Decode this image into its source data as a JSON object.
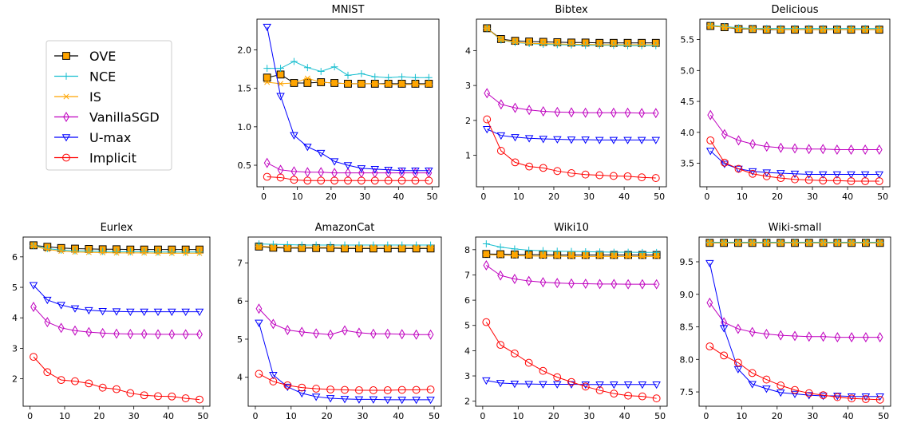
{
  "legend": {
    "location": "upper-left",
    "entries": [
      {
        "label": "OVE",
        "color": "#000000",
        "marker": "square"
      },
      {
        "label": "NCE",
        "color": "#17becf",
        "marker": "plus"
      },
      {
        "label": "IS",
        "color": "#ffa500",
        "marker": "asterisk"
      },
      {
        "label": "VanillaSGD",
        "color": "#bf00bf",
        "marker": "diamond"
      },
      {
        "label": "U-max",
        "color": "#0000ff",
        "marker": "triangle-down"
      },
      {
        "label": "Implicit",
        "color": "#ff0000",
        "marker": "circle"
      }
    ]
  },
  "chart_data": [
    {
      "type": "line",
      "title": "MNIST",
      "xlabel": "",
      "ylabel": "",
      "x": [
        1,
        5,
        9,
        13,
        17,
        21,
        25,
        29,
        33,
        37,
        41,
        45,
        49
      ],
      "xlim": [
        -2,
        52
      ],
      "ylim": [
        0.22,
        2.4
      ],
      "xticks": [
        0,
        10,
        20,
        30,
        40,
        50
      ],
      "yticks": [
        0.5,
        1.0,
        1.5,
        2.0
      ],
      "ytick_labels": [
        "0.5",
        "1.0",
        "1.5",
        "2.0"
      ],
      "series": [
        {
          "name": "OVE",
          "values": [
            1.64,
            1.68,
            1.57,
            1.57,
            1.58,
            1.57,
            1.56,
            1.56,
            1.56,
            1.56,
            1.56,
            1.56,
            1.56
          ]
        },
        {
          "name": "NCE",
          "values": [
            1.76,
            1.76,
            1.85,
            1.77,
            1.72,
            1.78,
            1.67,
            1.69,
            1.65,
            1.64,
            1.65,
            1.64,
            1.64
          ]
        },
        {
          "name": "IS",
          "values": [
            1.58,
            1.56,
            1.57,
            1.63,
            1.58,
            1.57,
            1.56,
            1.56,
            1.56,
            1.55,
            1.55,
            1.55,
            1.55
          ]
        },
        {
          "name": "VanillaSGD",
          "values": [
            0.53,
            0.44,
            0.42,
            0.41,
            0.41,
            0.4,
            0.4,
            0.4,
            0.4,
            0.4,
            0.4,
            0.4,
            0.4
          ]
        },
        {
          "name": "U-max",
          "values": [
            2.3,
            1.4,
            0.89,
            0.74,
            0.66,
            0.55,
            0.5,
            0.46,
            0.45,
            0.44,
            0.43,
            0.43,
            0.43
          ]
        },
        {
          "name": "Implicit",
          "values": [
            0.35,
            0.34,
            0.31,
            0.3,
            0.3,
            0.3,
            0.3,
            0.3,
            0.3,
            0.3,
            0.3,
            0.3,
            0.3
          ]
        }
      ]
    },
    {
      "type": "line",
      "title": "Bibtex",
      "xlabel": "",
      "ylabel": "",
      "x": [
        1,
        5,
        9,
        13,
        17,
        21,
        25,
        29,
        33,
        37,
        41,
        45,
        49
      ],
      "xlim": [
        -2,
        52
      ],
      "ylim": [
        0.1,
        4.9
      ],
      "xticks": [
        0,
        10,
        20,
        30,
        40,
        50
      ],
      "yticks": [
        1,
        2,
        3,
        4
      ],
      "ytick_labels": [
        "1",
        "2",
        "3",
        "4"
      ],
      "series": [
        {
          "name": "OVE",
          "values": [
            4.64,
            4.33,
            4.28,
            4.26,
            4.25,
            4.24,
            4.23,
            4.23,
            4.22,
            4.22,
            4.22,
            4.22,
            4.22
          ]
        },
        {
          "name": "NCE",
          "values": [
            4.64,
            4.3,
            4.23,
            4.2,
            4.18,
            4.17,
            4.16,
            4.15,
            4.15,
            4.15,
            4.14,
            4.14,
            4.14
          ]
        },
        {
          "name": "IS",
          "values": [
            4.64,
            4.31,
            4.24,
            4.21,
            4.2,
            4.19,
            4.18,
            4.18,
            4.17,
            4.17,
            4.17,
            4.17,
            4.17
          ]
        },
        {
          "name": "VanillaSGD",
          "values": [
            2.78,
            2.46,
            2.36,
            2.3,
            2.26,
            2.24,
            2.23,
            2.22,
            2.22,
            2.22,
            2.22,
            2.21,
            2.21
          ]
        },
        {
          "name": "U-max",
          "values": [
            1.75,
            1.57,
            1.52,
            1.49,
            1.47,
            1.46,
            1.45,
            1.45,
            1.44,
            1.44,
            1.44,
            1.44,
            1.44
          ]
        },
        {
          "name": "Implicit",
          "values": [
            2.03,
            1.13,
            0.8,
            0.68,
            0.64,
            0.55,
            0.49,
            0.45,
            0.43,
            0.41,
            0.4,
            0.37,
            0.35
          ]
        }
      ]
    },
    {
      "type": "line",
      "title": "Delicious",
      "xlabel": "",
      "ylabel": "",
      "x": [
        1,
        5,
        9,
        13,
        17,
        21,
        25,
        29,
        33,
        37,
        41,
        45,
        49
      ],
      "xlim": [
        -2,
        52
      ],
      "ylim": [
        3.12,
        5.83
      ],
      "xticks": [
        0,
        10,
        20,
        30,
        40,
        50
      ],
      "yticks": [
        3.5,
        4.0,
        4.5,
        5.0,
        5.5
      ],
      "ytick_labels": [
        "3.5",
        "4.0",
        "4.5",
        "5.0",
        "5.5"
      ],
      "series": [
        {
          "name": "OVE",
          "values": [
            5.72,
            5.7,
            5.67,
            5.67,
            5.66,
            5.66,
            5.66,
            5.66,
            5.66,
            5.66,
            5.66,
            5.66,
            5.66
          ]
        },
        {
          "name": "NCE",
          "values": [
            5.73,
            5.71,
            5.69,
            5.68,
            5.68,
            5.68,
            5.68,
            5.68,
            5.68,
            5.68,
            5.68,
            5.68,
            5.68
          ]
        },
        {
          "name": "IS",
          "values": [
            5.72,
            5.7,
            5.68,
            5.67,
            5.67,
            5.66,
            5.66,
            5.66,
            5.66,
            5.66,
            5.66,
            5.66,
            5.66
          ]
        },
        {
          "name": "VanillaSGD",
          "values": [
            4.28,
            3.97,
            3.87,
            3.81,
            3.77,
            3.75,
            3.74,
            3.73,
            3.73,
            3.72,
            3.72,
            3.72,
            3.72
          ]
        },
        {
          "name": "U-max",
          "values": [
            3.7,
            3.49,
            3.41,
            3.37,
            3.35,
            3.34,
            3.33,
            3.32,
            3.32,
            3.32,
            3.32,
            3.32,
            3.32
          ]
        },
        {
          "name": "Implicit",
          "values": [
            3.87,
            3.51,
            3.41,
            3.33,
            3.29,
            3.26,
            3.24,
            3.23,
            3.22,
            3.22,
            3.21,
            3.21,
            3.21
          ]
        }
      ]
    },
    {
      "type": "line",
      "title": "Eurlex",
      "xlabel": "",
      "ylabel": "",
      "x": [
        1,
        5,
        9,
        13,
        17,
        21,
        25,
        29,
        33,
        37,
        41,
        45,
        49
      ],
      "xlim": [
        -2,
        52
      ],
      "ylim": [
        1.1,
        6.65
      ],
      "xticks": [
        0,
        10,
        20,
        30,
        40,
        50
      ],
      "yticks": [
        2,
        3,
        4,
        5,
        6
      ],
      "ytick_labels": [
        "2",
        "3",
        "4",
        "5",
        "6"
      ],
      "series": [
        {
          "name": "OVE",
          "values": [
            6.38,
            6.33,
            6.29,
            6.27,
            6.26,
            6.25,
            6.25,
            6.24,
            6.24,
            6.24,
            6.24,
            6.24,
            6.24
          ]
        },
        {
          "name": "NCE",
          "values": [
            6.37,
            6.27,
            6.22,
            6.2,
            6.19,
            6.18,
            6.17,
            6.17,
            6.17,
            6.16,
            6.16,
            6.16,
            6.16
          ]
        },
        {
          "name": "IS",
          "values": [
            6.36,
            6.24,
            6.19,
            6.16,
            6.15,
            6.14,
            6.13,
            6.13,
            6.13,
            6.12,
            6.12,
            6.12,
            6.12
          ]
        },
        {
          "name": "VanillaSGD",
          "values": [
            4.36,
            3.86,
            3.67,
            3.58,
            3.53,
            3.5,
            3.48,
            3.47,
            3.47,
            3.46,
            3.46,
            3.46,
            3.46
          ]
        },
        {
          "name": "U-max",
          "values": [
            5.07,
            4.59,
            4.42,
            4.31,
            4.25,
            4.22,
            4.21,
            4.2,
            4.2,
            4.2,
            4.2,
            4.2,
            4.2
          ]
        },
        {
          "name": "Implicit",
          "values": [
            2.72,
            2.22,
            1.96,
            1.92,
            1.85,
            1.71,
            1.66,
            1.53,
            1.46,
            1.43,
            1.42,
            1.36,
            1.32
          ]
        }
      ]
    },
    {
      "type": "line",
      "title": "AmazonCat",
      "xlabel": "",
      "ylabel": "",
      "x": [
        1,
        5,
        9,
        13,
        17,
        21,
        25,
        29,
        33,
        37,
        41,
        45,
        49
      ],
      "xlim": [
        -2,
        52
      ],
      "ylim": [
        3.24,
        7.68
      ],
      "xticks": [
        0,
        10,
        20,
        30,
        40,
        50
      ],
      "yticks": [
        4,
        5,
        6,
        7
      ],
      "ytick_labels": [
        "4",
        "5",
        "6",
        "7"
      ],
      "series": [
        {
          "name": "OVE",
          "values": [
            7.43,
            7.4,
            7.39,
            7.39,
            7.39,
            7.39,
            7.38,
            7.38,
            7.38,
            7.38,
            7.38,
            7.38,
            7.38
          ]
        },
        {
          "name": "NCE",
          "values": [
            7.5,
            7.49,
            7.48,
            7.47,
            7.47,
            7.47,
            7.47,
            7.47,
            7.47,
            7.47,
            7.47,
            7.47,
            7.47
          ]
        },
        {
          "name": "IS",
          "values": [
            7.44,
            7.42,
            7.41,
            7.41,
            7.41,
            7.41,
            7.41,
            7.41,
            7.41,
            7.41,
            7.41,
            7.41,
            7.41
          ]
        },
        {
          "name": "VanillaSGD",
          "values": [
            5.8,
            5.4,
            5.24,
            5.19,
            5.15,
            5.12,
            5.23,
            5.17,
            5.14,
            5.14,
            5.13,
            5.12,
            5.12
          ]
        },
        {
          "name": "U-max",
          "values": [
            5.43,
            4.06,
            3.75,
            3.58,
            3.49,
            3.45,
            3.43,
            3.42,
            3.42,
            3.41,
            3.41,
            3.41,
            3.41
          ]
        },
        {
          "name": "Implicit",
          "values": [
            4.09,
            3.89,
            3.79,
            3.73,
            3.7,
            3.68,
            3.67,
            3.66,
            3.66,
            3.66,
            3.67,
            3.67,
            3.68
          ]
        }
      ]
    },
    {
      "type": "line",
      "title": "Wiki10",
      "xlabel": "",
      "ylabel": "",
      "x": [
        1,
        5,
        9,
        13,
        17,
        21,
        25,
        29,
        33,
        37,
        41,
        45,
        49
      ],
      "xlim": [
        -2,
        52
      ],
      "ylim": [
        1.8,
        8.5
      ],
      "xticks": [
        0,
        10,
        20,
        30,
        40,
        50
      ],
      "yticks": [
        2,
        3,
        4,
        5,
        6,
        7,
        8
      ],
      "ytick_labels": [
        "2",
        "3",
        "4",
        "5",
        "6",
        "7",
        "8"
      ],
      "series": [
        {
          "name": "OVE",
          "values": [
            7.83,
            7.82,
            7.81,
            7.8,
            7.8,
            7.79,
            7.79,
            7.79,
            7.79,
            7.79,
            7.79,
            7.79,
            7.79
          ]
        },
        {
          "name": "NCE",
          "values": [
            8.23,
            8.1,
            8.03,
            7.98,
            7.96,
            7.94,
            7.93,
            7.92,
            7.91,
            7.9,
            7.9,
            7.89,
            7.89
          ]
        },
        {
          "name": "IS",
          "values": [
            7.8,
            7.78,
            7.76,
            7.75,
            7.74,
            7.74,
            7.73,
            7.73,
            7.73,
            7.73,
            7.73,
            7.73,
            7.73
          ]
        },
        {
          "name": "VanillaSGD",
          "values": [
            7.38,
            6.98,
            6.84,
            6.76,
            6.71,
            6.68,
            6.66,
            6.65,
            6.64,
            6.64,
            6.63,
            6.63,
            6.63
          ]
        },
        {
          "name": "U-max",
          "values": [
            2.82,
            2.72,
            2.69,
            2.68,
            2.67,
            2.67,
            2.67,
            2.66,
            2.66,
            2.66,
            2.66,
            2.66,
            2.66
          ]
        },
        {
          "name": "Implicit",
          "values": [
            5.13,
            4.23,
            3.89,
            3.52,
            3.2,
            2.95,
            2.76,
            2.58,
            2.43,
            2.3,
            2.22,
            2.19,
            2.11
          ]
        }
      ]
    },
    {
      "type": "line",
      "title": "Wiki-small",
      "xlabel": "",
      "ylabel": "",
      "x": [
        1,
        5,
        9,
        13,
        17,
        21,
        25,
        29,
        33,
        37,
        41,
        45,
        49
      ],
      "xlim": [
        -2,
        52
      ],
      "ylim": [
        7.28,
        9.88
      ],
      "xticks": [
        0,
        10,
        20,
        30,
        40,
        50
      ],
      "yticks": [
        7.5,
        8.0,
        8.5,
        9.0,
        9.5
      ],
      "ytick_labels": [
        "7.5",
        "8.0",
        "8.5",
        "9.0",
        "9.5"
      ],
      "series": [
        {
          "name": "OVE",
          "values": [
            9.79,
            9.79,
            9.79,
            9.79,
            9.79,
            9.79,
            9.79,
            9.79,
            9.79,
            9.79,
            9.79,
            9.79,
            9.79
          ]
        },
        {
          "name": "NCE",
          "values": [
            9.8,
            9.8,
            9.8,
            9.8,
            9.8,
            9.8,
            9.8,
            9.8,
            9.8,
            9.8,
            9.8,
            9.8,
            9.8
          ]
        },
        {
          "name": "IS",
          "values": [
            9.79,
            9.79,
            9.79,
            9.79,
            9.79,
            9.79,
            9.79,
            9.79,
            9.79,
            9.79,
            9.79,
            9.79,
            9.79
          ]
        },
        {
          "name": "VanillaSGD",
          "values": [
            8.87,
            8.57,
            8.47,
            8.42,
            8.39,
            8.37,
            8.36,
            8.35,
            8.35,
            8.34,
            8.34,
            8.34,
            8.34
          ]
        },
        {
          "name": "U-max",
          "values": [
            9.48,
            8.48,
            7.85,
            7.62,
            7.55,
            7.49,
            7.47,
            7.45,
            7.44,
            7.44,
            7.43,
            7.43,
            7.43
          ]
        },
        {
          "name": "Implicit",
          "values": [
            8.2,
            8.06,
            7.95,
            7.79,
            7.69,
            7.6,
            7.53,
            7.48,
            7.45,
            7.42,
            7.4,
            7.39,
            7.38
          ]
        }
      ]
    }
  ]
}
